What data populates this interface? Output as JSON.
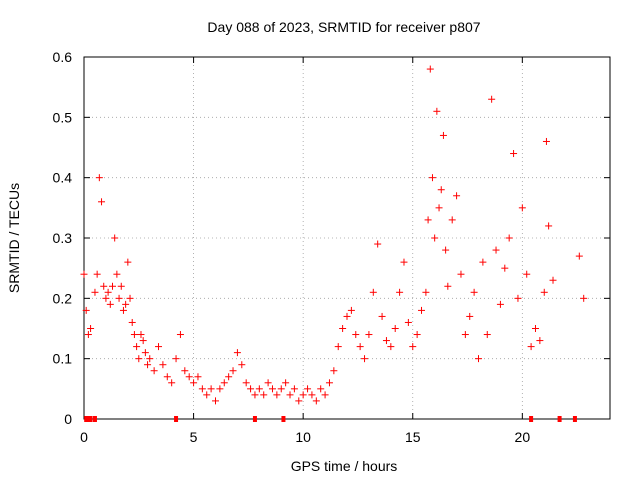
{
  "chart_data": {
    "type": "scatter",
    "title": "Day 088 of 2023, SRMTID for receiver p807",
    "xlabel": "GPS time / hours",
    "ylabel": "SRMTID / TECUs",
    "xlim": [
      0,
      24
    ],
    "ylim": [
      0,
      0.6
    ],
    "x_ticks": [
      0,
      5,
      10,
      15,
      20
    ],
    "y_ticks": [
      0,
      0.1,
      0.2,
      0.3,
      0.4,
      0.5,
      0.6
    ],
    "x_tick_labels": [
      "0",
      "5",
      "10",
      "15",
      "20"
    ],
    "y_tick_labels": [
      "0",
      "0.1",
      "0.2",
      "0.3",
      "0.4",
      "0.5",
      "0.6"
    ],
    "grid": true,
    "marker": "plus",
    "series_color": "#ff0000",
    "series": [
      {
        "name": "SRMTID",
        "x": [
          0.0,
          0.1,
          0.2,
          0.3,
          0.5,
          0.6,
          0.7,
          0.8,
          0.9,
          1.0,
          1.1,
          1.2,
          1.3,
          1.4,
          1.5,
          1.6,
          1.7,
          1.8,
          1.9,
          2.0,
          2.1,
          2.2,
          2.3,
          2.4,
          2.5,
          2.6,
          2.7,
          2.8,
          2.9,
          3.0,
          3.2,
          3.4,
          3.6,
          3.8,
          4.0,
          4.2,
          4.4,
          4.6,
          4.8,
          5.0,
          5.2,
          5.4,
          5.6,
          5.8,
          6.0,
          6.2,
          6.4,
          6.6,
          6.8,
          7.0,
          7.2,
          7.4,
          7.6,
          7.8,
          8.0,
          8.2,
          8.4,
          8.6,
          8.8,
          9.0,
          9.2,
          9.4,
          9.6,
          9.8,
          10.0,
          10.2,
          10.4,
          10.6,
          10.8,
          11.0,
          11.2,
          11.4,
          11.6,
          11.8,
          12.0,
          12.2,
          12.4,
          12.6,
          12.8,
          13.0,
          13.2,
          13.4,
          13.6,
          13.8,
          14.0,
          14.2,
          14.4,
          14.6,
          14.8,
          15.0,
          15.2,
          15.4,
          15.6,
          15.7,
          15.8,
          15.9,
          16.0,
          16.1,
          16.2,
          16.3,
          16.4,
          16.5,
          16.6,
          16.8,
          17.0,
          17.2,
          17.4,
          17.6,
          17.8,
          18.0,
          18.2,
          18.4,
          18.6,
          18.8,
          19.0,
          19.2,
          19.4,
          19.6,
          19.8,
          20.0,
          20.2,
          20.4,
          20.6,
          20.8,
          21.0,
          21.1,
          21.2,
          21.4,
          22.6,
          22.8
        ],
        "y": [
          0.24,
          0.18,
          0.14,
          0.15,
          0.21,
          0.24,
          0.4,
          0.36,
          0.22,
          0.2,
          0.21,
          0.19,
          0.22,
          0.3,
          0.24,
          0.2,
          0.22,
          0.18,
          0.19,
          0.26,
          0.2,
          0.16,
          0.14,
          0.12,
          0.1,
          0.14,
          0.13,
          0.11,
          0.09,
          0.1,
          0.08,
          0.12,
          0.09,
          0.07,
          0.06,
          0.1,
          0.14,
          0.08,
          0.07,
          0.06,
          0.07,
          0.05,
          0.04,
          0.05,
          0.03,
          0.05,
          0.06,
          0.07,
          0.08,
          0.11,
          0.09,
          0.06,
          0.05,
          0.04,
          0.05,
          0.04,
          0.06,
          0.05,
          0.04,
          0.05,
          0.06,
          0.04,
          0.05,
          0.03,
          0.04,
          0.05,
          0.04,
          0.03,
          0.05,
          0.04,
          0.06,
          0.08,
          0.12,
          0.15,
          0.17,
          0.18,
          0.14,
          0.12,
          0.1,
          0.14,
          0.21,
          0.29,
          0.17,
          0.13,
          0.12,
          0.15,
          0.21,
          0.26,
          0.16,
          0.12,
          0.14,
          0.18,
          0.21,
          0.33,
          0.58,
          0.4,
          0.3,
          0.51,
          0.35,
          0.38,
          0.47,
          0.28,
          0.22,
          0.33,
          0.37,
          0.24,
          0.14,
          0.17,
          0.21,
          0.1,
          0.26,
          0.14,
          0.53,
          0.28,
          0.19,
          0.25,
          0.3,
          0.44,
          0.2,
          0.35,
          0.24,
          0.12,
          0.15,
          0.13,
          0.21,
          0.46,
          0.32,
          0.23,
          0.27,
          0.2
        ]
      }
    ],
    "gap_markers_x": [
      0.1,
      0.2,
      0.3,
      0.5,
      4.2,
      7.8,
      9.1,
      20.4,
      21.7,
      22.4
    ]
  }
}
